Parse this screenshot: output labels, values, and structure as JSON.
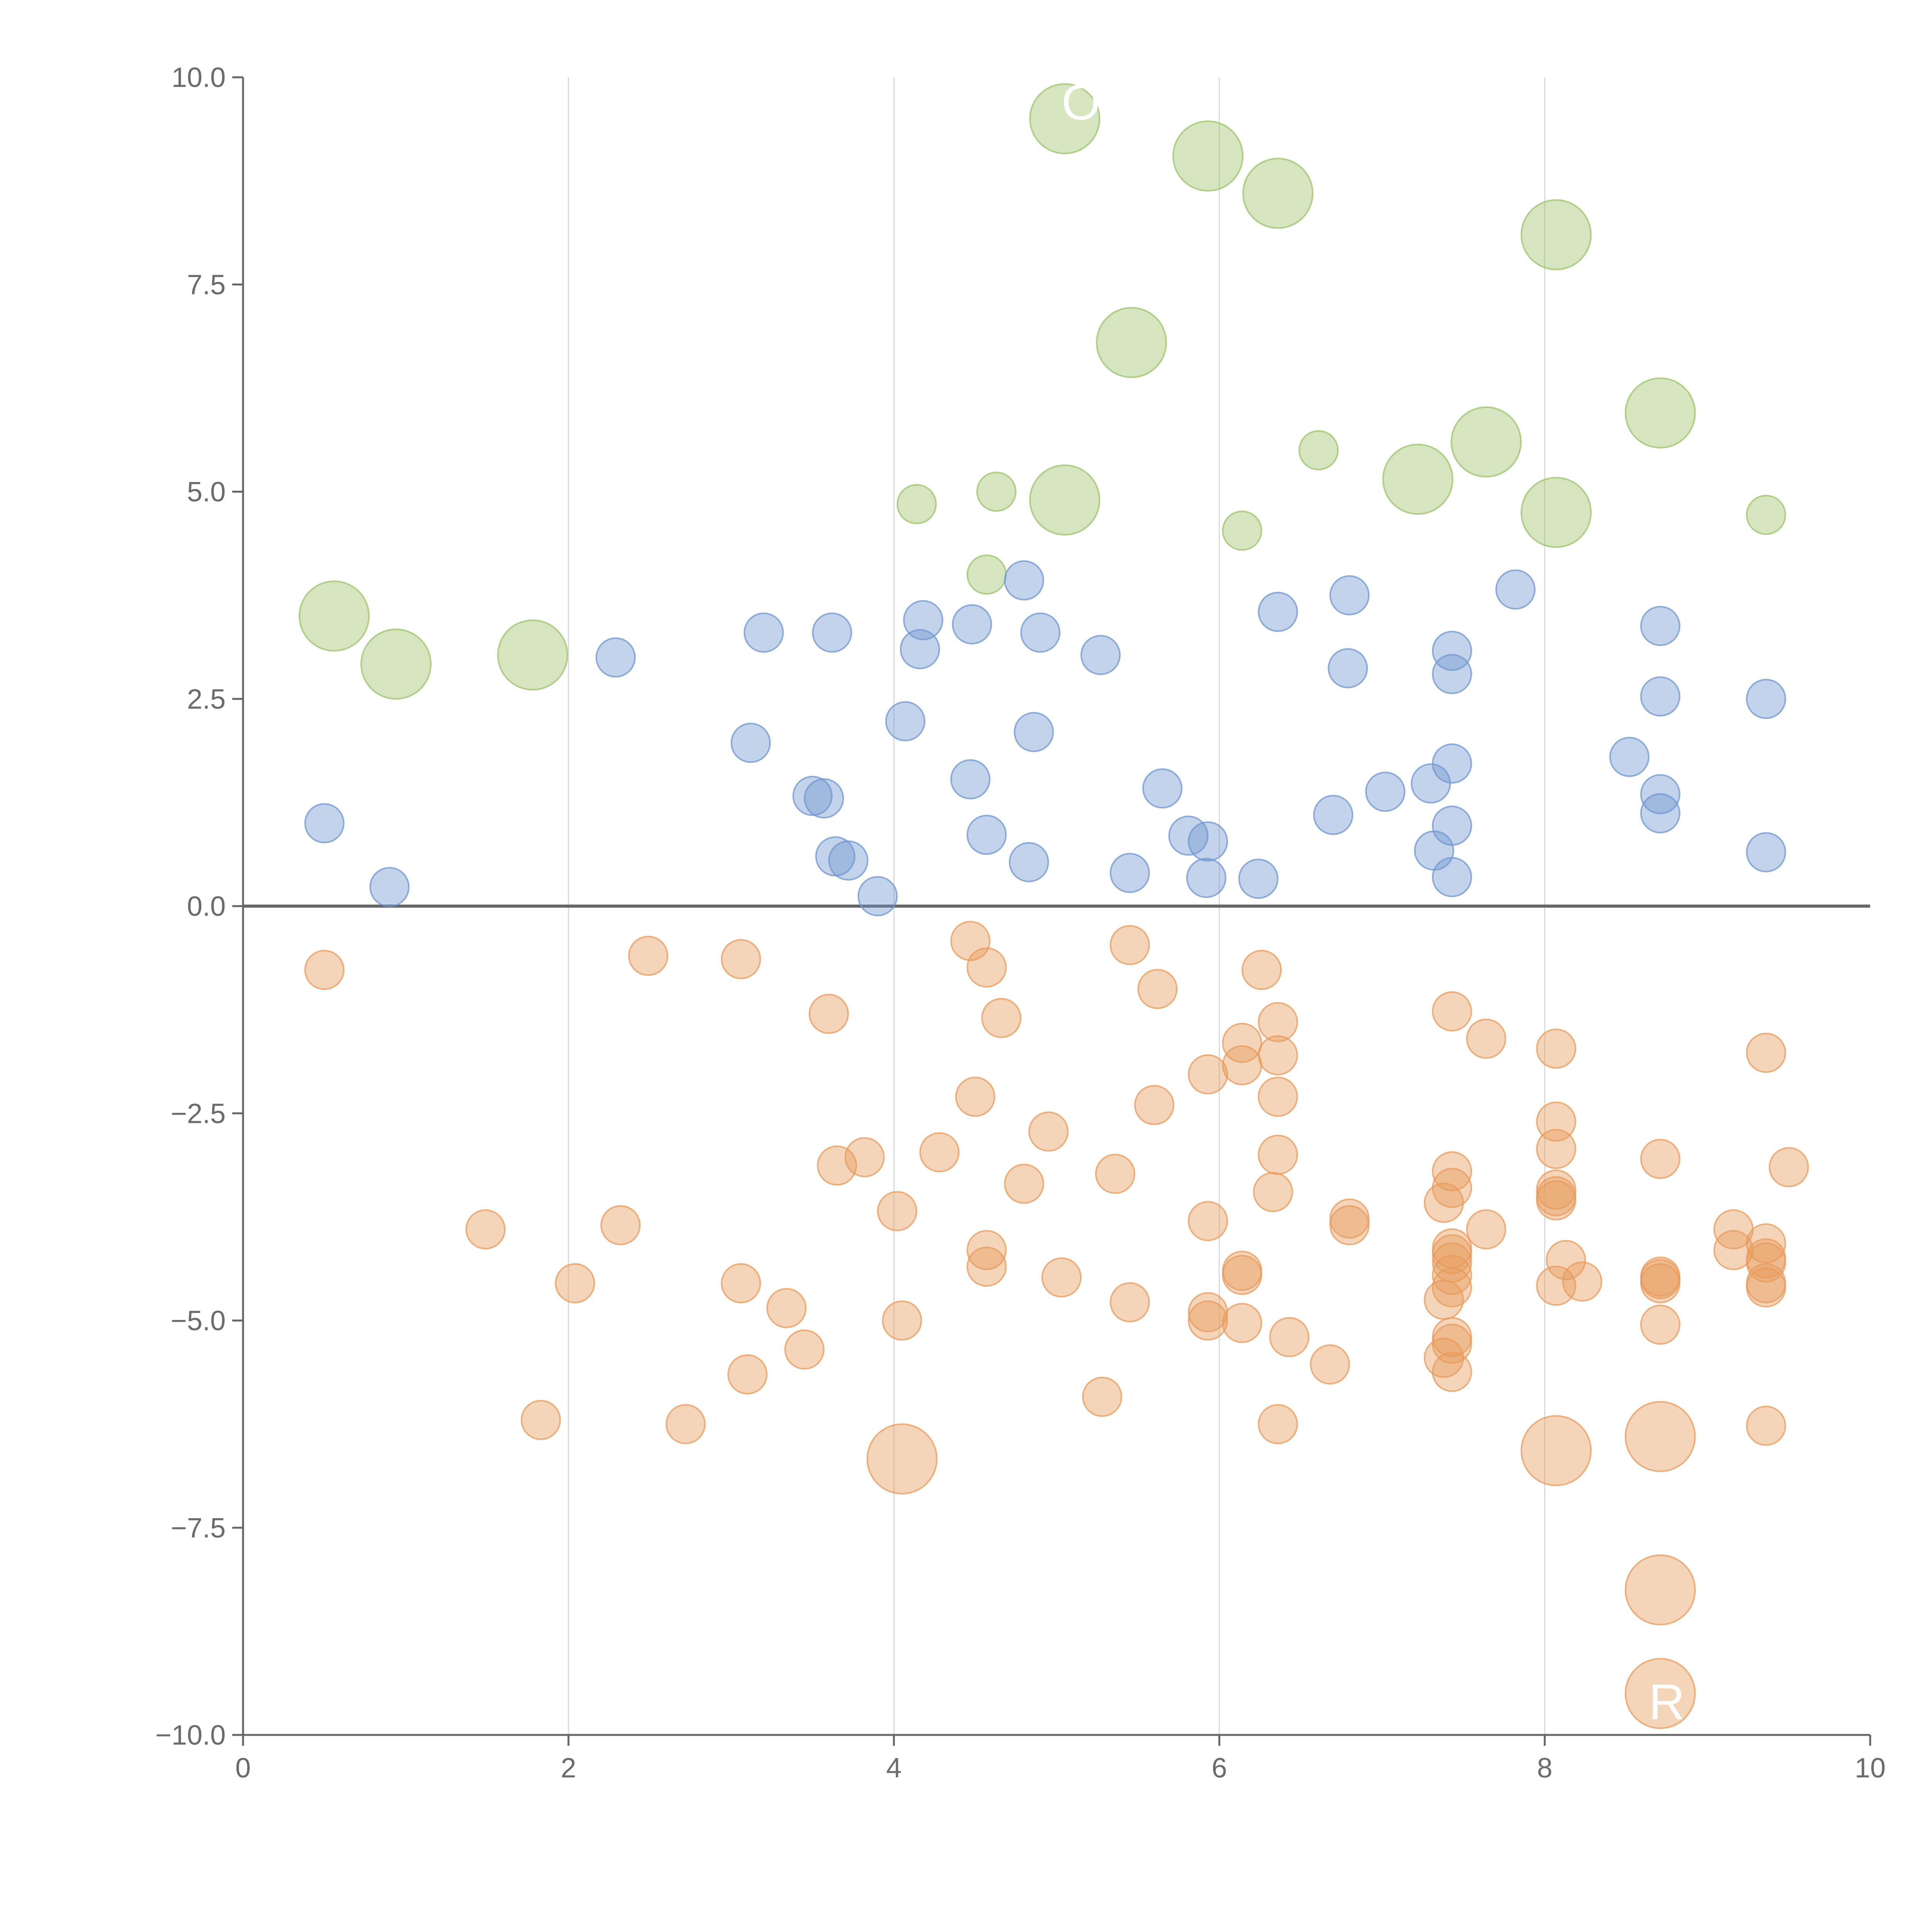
{
  "chart_data": {
    "type": "scatter",
    "title": "",
    "xlabel": "",
    "ylabel": "",
    "xlim": [
      0,
      10
    ],
    "ylim": [
      -10,
      10
    ],
    "x_ticks": [
      "0",
      "2",
      "4",
      "6",
      "8",
      "10"
    ],
    "y_ticks": [
      "10.0",
      "7.5",
      "5.0",
      "2.5",
      "0.0",
      "−2.5",
      "−5.0",
      "−7.5",
      "−10.0"
    ],
    "x_grid": [
      2,
      4,
      6,
      8
    ],
    "zero_line": 0,
    "colors": {
      "green": "#9cc26a",
      "blue": "#6f95cf",
      "orange": "#e89a5b",
      "axis": "#666666",
      "grid": "#d9d9d9",
      "label_text": "#ffffff"
    },
    "annotations": [
      {
        "text": "O",
        "x": 5.15,
        "y": 9.7
      },
      {
        "text": "R",
        "x": 8.75,
        "y": -9.6
      }
    ],
    "series": [
      {
        "name": "green",
        "color": "#9cc26a",
        "points": [
          [
            5.05,
            9.5,
            "L"
          ],
          [
            5.93,
            9.05,
            "L"
          ],
          [
            6.36,
            8.6,
            "L"
          ],
          [
            8.07,
            8.1,
            "L"
          ],
          [
            5.46,
            6.8,
            "L"
          ],
          [
            8.71,
            5.95,
            "L"
          ],
          [
            7.64,
            5.6,
            "L"
          ],
          [
            6.61,
            5.5,
            "S"
          ],
          [
            7.22,
            5.15,
            "L"
          ],
          [
            5.05,
            4.9,
            "L"
          ],
          [
            4.63,
            5.0,
            "S"
          ],
          [
            4.14,
            4.85,
            "S"
          ],
          [
            8.07,
            4.75,
            "L"
          ],
          [
            9.36,
            4.72,
            "S"
          ],
          [
            6.14,
            4.53,
            "S"
          ],
          [
            4.57,
            4.0,
            "S"
          ],
          [
            0.56,
            3.5,
            "L"
          ],
          [
            0.94,
            2.92,
            "L"
          ],
          [
            1.78,
            3.03,
            "L"
          ]
        ]
      },
      {
        "name": "blue",
        "color": "#6f95cf",
        "points": [
          [
            4.8,
            3.93
          ],
          [
            6.8,
            3.75
          ],
          [
            7.82,
            3.82
          ],
          [
            6.36,
            3.55
          ],
          [
            4.18,
            3.45
          ],
          [
            4.48,
            3.4
          ],
          [
            3.2,
            3.3
          ],
          [
            3.62,
            3.3
          ],
          [
            4.9,
            3.3
          ],
          [
            8.71,
            3.38
          ],
          [
            4.16,
            3.1
          ],
          [
            7.43,
            3.08
          ],
          [
            2.29,
            3.0
          ],
          [
            5.27,
            3.03
          ],
          [
            6.79,
            2.87
          ],
          [
            7.43,
            2.8
          ],
          [
            8.71,
            2.53
          ],
          [
            9.36,
            2.5
          ],
          [
            4.07,
            2.23
          ],
          [
            4.86,
            2.1
          ],
          [
            3.12,
            1.97
          ],
          [
            8.52,
            1.8
          ],
          [
            7.43,
            1.72
          ],
          [
            4.47,
            1.53
          ],
          [
            7.3,
            1.48
          ],
          [
            5.65,
            1.42
          ],
          [
            7.02,
            1.38
          ],
          [
            3.5,
            1.33
          ],
          [
            3.57,
            1.3
          ],
          [
            8.71,
            1.35
          ],
          [
            8.71,
            1.12
          ],
          [
            6.7,
            1.1
          ],
          [
            0.5,
            1.0
          ],
          [
            7.43,
            0.97
          ],
          [
            4.57,
            0.86
          ],
          [
            5.81,
            0.85
          ],
          [
            5.93,
            0.78
          ],
          [
            7.32,
            0.67
          ],
          [
            9.36,
            0.65
          ],
          [
            3.64,
            0.6
          ],
          [
            3.72,
            0.55
          ],
          [
            4.83,
            0.53
          ],
          [
            5.45,
            0.4
          ],
          [
            7.43,
            0.35
          ],
          [
            5.92,
            0.34
          ],
          [
            6.24,
            0.33
          ],
          [
            0.9,
            0.23
          ],
          [
            3.9,
            0.12
          ]
        ]
      },
      {
        "name": "orange",
        "color": "#e89a5b",
        "points": [
          [
            4.47,
            -0.42
          ],
          [
            5.45,
            -0.47
          ],
          [
            0.5,
            -0.77
          ],
          [
            2.49,
            -0.6
          ],
          [
            3.06,
            -0.64
          ],
          [
            4.57,
            -0.74
          ],
          [
            6.26,
            -0.77
          ],
          [
            5.62,
            -1.0
          ],
          [
            7.43,
            -1.27
          ],
          [
            3.6,
            -1.3
          ],
          [
            4.66,
            -1.35
          ],
          [
            6.36,
            -1.4
          ],
          [
            6.14,
            -1.65
          ],
          [
            7.64,
            -1.6
          ],
          [
            8.07,
            -1.72
          ],
          [
            9.36,
            -1.77
          ],
          [
            6.36,
            -1.8
          ],
          [
            6.14,
            -1.92
          ],
          [
            5.93,
            -2.03
          ],
          [
            4.5,
            -2.3
          ],
          [
            6.36,
            -2.3
          ],
          [
            5.6,
            -2.4
          ],
          [
            4.95,
            -2.72
          ],
          [
            8.07,
            -2.6
          ],
          [
            4.28,
            -2.97
          ],
          [
            3.82,
            -3.03
          ],
          [
            6.36,
            -3.0
          ],
          [
            8.07,
            -2.93
          ],
          [
            8.71,
            -3.05
          ],
          [
            3.65,
            -3.13
          ],
          [
            7.43,
            -3.2
          ],
          [
            9.5,
            -3.15
          ],
          [
            5.36,
            -3.23
          ],
          [
            4.8,
            -3.35
          ],
          [
            7.43,
            -3.4
          ],
          [
            6.33,
            -3.45
          ],
          [
            8.07,
            -3.42
          ],
          [
            8.07,
            -3.5
          ],
          [
            8.07,
            -3.55
          ],
          [
            7.38,
            -3.58
          ],
          [
            4.02,
            -3.68
          ],
          [
            5.93,
            -3.8
          ],
          [
            6.8,
            -3.77
          ],
          [
            6.8,
            -3.85
          ],
          [
            7.64,
            -3.9
          ],
          [
            1.49,
            -3.9
          ],
          [
            2.32,
            -3.85
          ],
          [
            9.16,
            -3.9
          ],
          [
            9.36,
            -4.07
          ],
          [
            9.16,
            -4.15
          ],
          [
            7.43,
            -4.13
          ],
          [
            7.43,
            -4.2
          ],
          [
            4.57,
            -4.15
          ],
          [
            8.13,
            -4.27
          ],
          [
            9.36,
            -4.25
          ],
          [
            9.36,
            -4.3
          ],
          [
            7.43,
            -4.3
          ],
          [
            6.14,
            -4.4
          ],
          [
            6.14,
            -4.45
          ],
          [
            4.57,
            -4.35
          ],
          [
            7.43,
            -4.45
          ],
          [
            8.71,
            -4.47
          ],
          [
            8.71,
            -4.5
          ],
          [
            8.71,
            -4.55
          ],
          [
            5.03,
            -4.48
          ],
          [
            9.36,
            -4.55
          ],
          [
            9.36,
            -4.6
          ],
          [
            2.04,
            -4.55
          ],
          [
            3.06,
            -4.55
          ],
          [
            7.43,
            -4.6
          ],
          [
            8.07,
            -4.58
          ],
          [
            8.23,
            -4.53
          ],
          [
            7.38,
            -4.75
          ],
          [
            3.34,
            -4.85
          ],
          [
            5.45,
            -4.78
          ],
          [
            5.93,
            -4.9
          ],
          [
            4.05,
            -5.0
          ],
          [
            5.93,
            -5.0
          ],
          [
            6.14,
            -5.03
          ],
          [
            6.43,
            -5.2
          ],
          [
            7.43,
            -5.2
          ],
          [
            7.43,
            -5.28
          ],
          [
            8.71,
            -5.05
          ],
          [
            3.45,
            -5.35
          ],
          [
            7.38,
            -5.45
          ],
          [
            6.68,
            -5.53
          ],
          [
            7.43,
            -5.62
          ],
          [
            3.1,
            -5.65
          ],
          [
            5.28,
            -5.92
          ],
          [
            1.83,
            -6.2
          ],
          [
            2.72,
            -6.25
          ],
          [
            6.36,
            -6.25
          ],
          [
            9.36,
            -6.27
          ]
        ]
      },
      {
        "name": "orange-large",
        "color": "#e89a5b",
        "points": [
          [
            4.05,
            -6.67
          ],
          [
            8.07,
            -6.57
          ],
          [
            8.71,
            -6.4
          ],
          [
            8.71,
            -8.25
          ],
          [
            8.71,
            -9.5
          ]
        ]
      }
    ]
  }
}
